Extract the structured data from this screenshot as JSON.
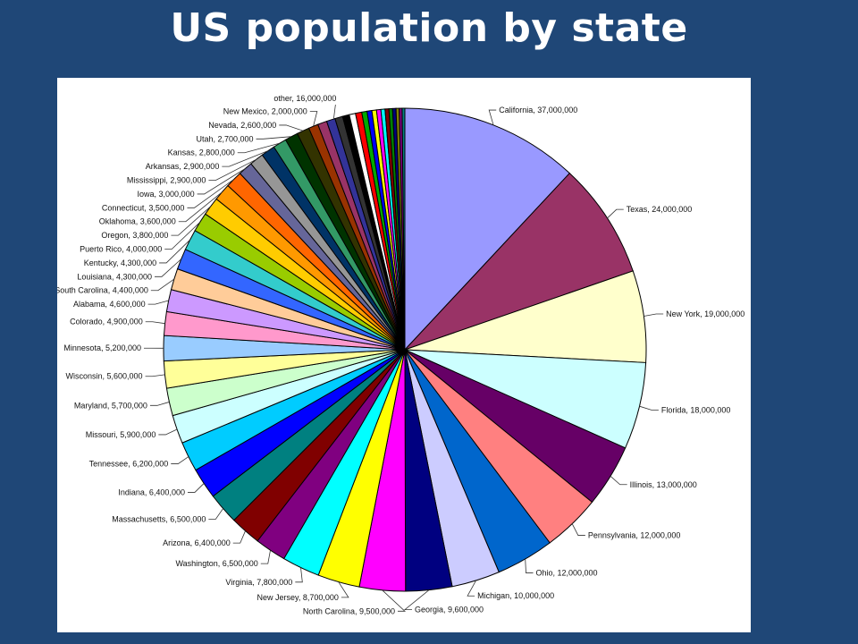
{
  "slide": {
    "title": "US population by state"
  },
  "chart_data": {
    "type": "pie",
    "title": "US population by state",
    "legend": "none",
    "slices": [
      {
        "label": "California",
        "value": 37000000,
        "text": "California, 37,000,000",
        "color": "#9999ff"
      },
      {
        "label": "Texas",
        "value": 24000000,
        "text": "Texas, 24,000,000",
        "color": "#993366"
      },
      {
        "label": "New York",
        "value": 19000000,
        "text": "New York, 19,000,000",
        "color": "#ffffcc"
      },
      {
        "label": "Florida",
        "value": 18000000,
        "text": "Florida, 18,000,000",
        "color": "#ccffff"
      },
      {
        "label": "Illinois",
        "value": 13000000,
        "text": "Illinois, 13,000,000",
        "color": "#660066"
      },
      {
        "label": "Pennsylvania",
        "value": 12000000,
        "text": "Pennsylvania, 12,000,000",
        "color": "#ff8080"
      },
      {
        "label": "Ohio",
        "value": 12000000,
        "text": "Ohio, 12,000,000",
        "color": "#0066cc"
      },
      {
        "label": "Michigan",
        "value": 10000000,
        "text": "Michigan, 10,000,000",
        "color": "#ccccff"
      },
      {
        "label": "Georgia",
        "value": 9600000,
        "text": "Georgia, 9,600,000",
        "color": "#000080"
      },
      {
        "label": "North Carolina",
        "value": 9500000,
        "text": "North Carolina, 9,500,000",
        "color": "#ff00ff"
      },
      {
        "label": "New Jersey",
        "value": 8700000,
        "text": "New Jersey, 8,700,000",
        "color": "#ffff00"
      },
      {
        "label": "Virginia",
        "value": 7800000,
        "text": "Virginia, 7,800,000",
        "color": "#00ffff"
      },
      {
        "label": "Washington",
        "value": 6500000,
        "text": "Washington, 6,500,000",
        "color": "#800080"
      },
      {
        "label": "Arizona",
        "value": 6400000,
        "text": "Arizona, 6,400,000",
        "color": "#800000"
      },
      {
        "label": "Massachusetts",
        "value": 6500000,
        "text": "Massachusetts, 6,500,000",
        "color": "#008080"
      },
      {
        "label": "Indiana",
        "value": 6400000,
        "text": "Indiana, 6,400,000",
        "color": "#0000ff"
      },
      {
        "label": "Tennessee",
        "value": 6200000,
        "text": "Tennessee, 6,200,000",
        "color": "#00ccff"
      },
      {
        "label": "Missouri",
        "value": 5900000,
        "text": "Missouri, 5,900,000",
        "color": "#ccffff"
      },
      {
        "label": "Maryland",
        "value": 5700000,
        "text": "Maryland, 5,700,000",
        "color": "#ccffcc"
      },
      {
        "label": "Wisconsin",
        "value": 5600000,
        "text": "Wisconsin, 5,600,000",
        "color": "#ffff99"
      },
      {
        "label": "Minnesota",
        "value": 5200000,
        "text": "Minnesota, 5,200,000",
        "color": "#99ccff"
      },
      {
        "label": "Colorado",
        "value": 4900000,
        "text": "Colorado, 4,900,000",
        "color": "#ff99cc"
      },
      {
        "label": "Alabama",
        "value": 4600000,
        "text": "Alabama, 4,600,000",
        "color": "#cc99ff"
      },
      {
        "label": "South Carolina",
        "value": 4400000,
        "text": "South Carolina, 4,400,000",
        "color": "#ffcc99"
      },
      {
        "label": "Louisiana",
        "value": 4300000,
        "text": "Louisiana, 4,300,000",
        "color": "#3366ff"
      },
      {
        "label": "Kentucky",
        "value": 4300000,
        "text": "Kentucky, 4,300,000",
        "color": "#33cccc"
      },
      {
        "label": "Puerto Rico",
        "value": 4000000,
        "text": "Puerto Rico, 4,000,000",
        "color": "#99cc00"
      },
      {
        "label": "Oregon",
        "value": 3800000,
        "text": "Oregon, 3,800,000",
        "color": "#ffcc00"
      },
      {
        "label": "Oklahoma",
        "value": 3600000,
        "text": "Oklahoma, 3,600,000",
        "color": "#ff9900"
      },
      {
        "label": "Connecticut",
        "value": 3500000,
        "text": "Connecticut, 3,500,000",
        "color": "#ff6600"
      },
      {
        "label": "Iowa",
        "value": 3000000,
        "text": "Iowa, 3,000,000",
        "color": "#666699"
      },
      {
        "label": "Mississippi",
        "value": 2900000,
        "text": "Mississippi, 2,900,000",
        "color": "#969696"
      },
      {
        "label": "Arkansas",
        "value": 2900000,
        "text": "Arkansas, 2,900,000",
        "color": "#003366"
      },
      {
        "label": "Kansas",
        "value": 2800000,
        "text": "Kansas, 2,800,000",
        "color": "#339966"
      },
      {
        "label": "Utah",
        "value": 2700000,
        "text": "Utah, 2,700,000",
        "color": "#003300"
      },
      {
        "label": "Nevada",
        "value": 2600000,
        "text": "Nevada, 2,600,000",
        "color": "#333300"
      },
      {
        "label": "New Mexico",
        "value": 2000000,
        "text": "New Mexico, 2,000,000",
        "color": "#993300"
      },
      {
        "label": "",
        "value": 1900000,
        "text": "",
        "color": "#993366"
      },
      {
        "label": "",
        "value": 1800000,
        "text": "",
        "color": "#333399"
      },
      {
        "label": "",
        "value": 1600000,
        "text": "",
        "color": "#333333"
      },
      {
        "label": "",
        "value": 1400000,
        "text": "",
        "color": "#000000"
      },
      {
        "label": "",
        "value": 1300000,
        "text": "",
        "color": "#ffffff"
      },
      {
        "label": "",
        "value": 1300000,
        "text": "",
        "color": "#ff0000"
      },
      {
        "label": "",
        "value": 1100000,
        "text": "",
        "color": "#00aa00"
      },
      {
        "label": "",
        "value": 1000000,
        "text": "",
        "color": "#0000ff"
      },
      {
        "label": "",
        "value": 950000,
        "text": "",
        "color": "#ffff00"
      },
      {
        "label": "",
        "value": 900000,
        "text": "",
        "color": "#ff00ff"
      },
      {
        "label": "",
        "value": 850000,
        "text": "",
        "color": "#00ffff"
      },
      {
        "label": "",
        "value": 800000,
        "text": "",
        "color": "#800000"
      },
      {
        "label": "",
        "value": 750000,
        "text": "",
        "color": "#008000"
      },
      {
        "label": "",
        "value": 700000,
        "text": "",
        "color": "#000080"
      },
      {
        "label": "",
        "value": 650000,
        "text": "",
        "color": "#808000"
      },
      {
        "label": "",
        "value": 600000,
        "text": "",
        "color": "#800080"
      },
      {
        "label": "",
        "value": 560000,
        "text": "",
        "color": "#008080"
      }
    ],
    "other_label": "other, 16,000,000"
  }
}
